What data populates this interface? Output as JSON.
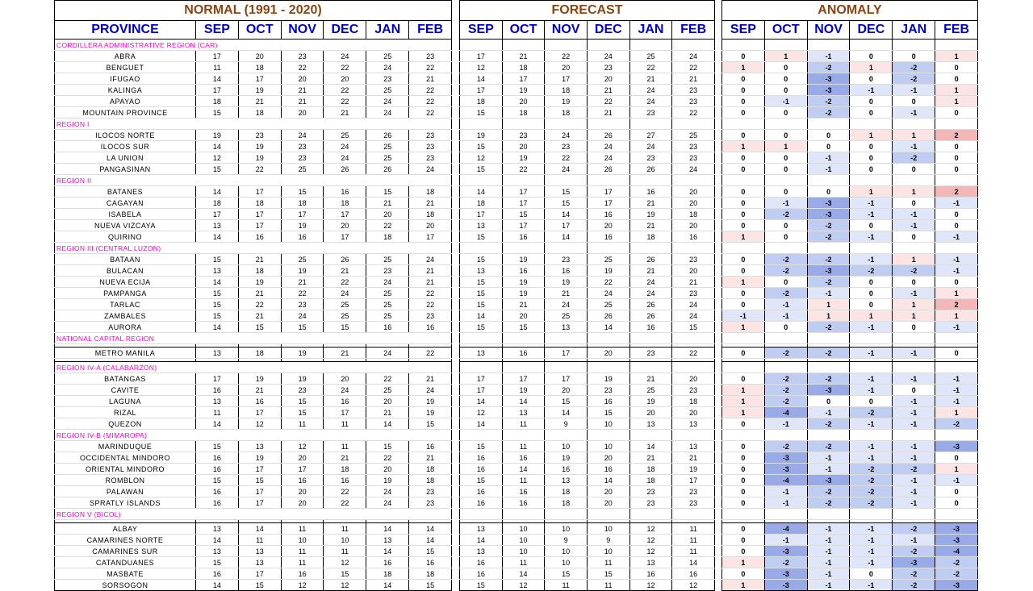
{
  "titles": {
    "normal": "NORMAL (1991 - 2020)",
    "forecast": "FORECAST",
    "anomaly": "ANOMALY"
  },
  "province_header": "PROVINCE",
  "months": [
    "SEP",
    "OCT",
    "NOV",
    "DEC",
    "JAN",
    "FEB"
  ],
  "colors": {
    "title": "#8b4513",
    "header": "#0000cc",
    "region": "#ff00cc",
    "pos_light": "#fce4e4",
    "pos_dark": "#f4b6b6",
    "neg_light": "#dfe6fa",
    "neg_mid": "#c0cdf3",
    "neg_dark": "#98abe8"
  },
  "rows": [
    {
      "type": "region",
      "name": "CORDILLERA ADMINISTRATIVE REGION (CAR)"
    },
    {
      "type": "province",
      "name": "ABRA",
      "normal": [
        17,
        20,
        23,
        24,
        25,
        23
      ],
      "forecast": [
        17,
        21,
        22,
        24,
        25,
        24
      ],
      "anomaly": [
        0,
        1,
        -1,
        0,
        0,
        1
      ]
    },
    {
      "type": "province",
      "name": "BENGUET",
      "normal": [
        11,
        18,
        22,
        22,
        24,
        22
      ],
      "forecast": [
        12,
        18,
        20,
        23,
        22,
        22
      ],
      "anomaly": [
        1,
        0,
        -2,
        1,
        -2,
        0
      ]
    },
    {
      "type": "province",
      "name": "IFUGAO",
      "normal": [
        14,
        17,
        20,
        20,
        23,
        21
      ],
      "forecast": [
        14,
        17,
        17,
        20,
        21,
        21
      ],
      "anomaly": [
        0,
        0,
        -3,
        0,
        -2,
        0
      ]
    },
    {
      "type": "province",
      "name": "KALINGA",
      "normal": [
        17,
        19,
        21,
        22,
        25,
        22
      ],
      "forecast": [
        17,
        19,
        18,
        21,
        24,
        23
      ],
      "anomaly": [
        0,
        0,
        -3,
        -1,
        -1,
        1
      ]
    },
    {
      "type": "province",
      "name": "APAYAO",
      "normal": [
        18,
        21,
        21,
        22,
        24,
        22
      ],
      "forecast": [
        18,
        20,
        19,
        22,
        24,
        23
      ],
      "anomaly": [
        0,
        -1,
        -2,
        0,
        0,
        1
      ]
    },
    {
      "type": "province",
      "name": "MOUNTAIN PROVINCE",
      "normal": [
        15,
        18,
        20,
        21,
        24,
        22
      ],
      "forecast": [
        15,
        18,
        18,
        21,
        23,
        22
      ],
      "anomaly": [
        0,
        0,
        -2,
        0,
        -1,
        0
      ]
    },
    {
      "type": "region",
      "name": "REGION I"
    },
    {
      "type": "province",
      "name": "ILOCOS NORTE",
      "normal": [
        19,
        23,
        24,
        25,
        26,
        23
      ],
      "forecast": [
        19,
        23,
        24,
        26,
        27,
        25
      ],
      "anomaly": [
        0,
        0,
        0,
        1,
        1,
        2
      ]
    },
    {
      "type": "province",
      "name": "ILOCOS SUR",
      "normal": [
        14,
        19,
        23,
        24,
        25,
        23
      ],
      "forecast": [
        15,
        20,
        23,
        24,
        24,
        23
      ],
      "anomaly": [
        1,
        1,
        0,
        0,
        -1,
        0
      ]
    },
    {
      "type": "province",
      "name": "LA UNION",
      "normal": [
        12,
        19,
        23,
        24,
        25,
        23
      ],
      "forecast": [
        12,
        19,
        22,
        24,
        23,
        23
      ],
      "anomaly": [
        0,
        0,
        -1,
        0,
        -2,
        0
      ]
    },
    {
      "type": "province",
      "name": "PANGASINAN",
      "normal": [
        15,
        22,
        25,
        26,
        26,
        24
      ],
      "forecast": [
        15,
        22,
        24,
        26,
        26,
        24
      ],
      "anomaly": [
        0,
        0,
        -1,
        0,
        0,
        0
      ]
    },
    {
      "type": "region",
      "name": "REGION II"
    },
    {
      "type": "province",
      "name": "BATANES",
      "normal": [
        14,
        17,
        15,
        16,
        15,
        18
      ],
      "forecast": [
        14,
        17,
        15,
        17,
        16,
        20
      ],
      "anomaly": [
        0,
        0,
        0,
        1,
        1,
        2
      ]
    },
    {
      "type": "province",
      "name": "CAGAYAN",
      "normal": [
        18,
        18,
        18,
        18,
        21,
        21
      ],
      "forecast": [
        18,
        17,
        15,
        17,
        21,
        20
      ],
      "anomaly": [
        0,
        -1,
        -3,
        -1,
        0,
        -1
      ]
    },
    {
      "type": "province",
      "name": "ISABELA",
      "normal": [
        17,
        17,
        17,
        17,
        20,
        18
      ],
      "forecast": [
        17,
        15,
        14,
        16,
        19,
        18
      ],
      "anomaly": [
        0,
        -2,
        -3,
        -1,
        -1,
        0
      ]
    },
    {
      "type": "province",
      "name": "NUEVA VIZCAYA",
      "normal": [
        13,
        17,
        19,
        20,
        22,
        20
      ],
      "forecast": [
        13,
        17,
        17,
        20,
        21,
        20
      ],
      "anomaly": [
        0,
        0,
        -2,
        0,
        -1,
        0
      ]
    },
    {
      "type": "province",
      "name": "QUIRINO",
      "normal": [
        14,
        16,
        16,
        17,
        18,
        17
      ],
      "forecast": [
        15,
        16,
        14,
        16,
        18,
        16
      ],
      "anomaly": [
        1,
        0,
        -2,
        -1,
        0,
        -1
      ]
    },
    {
      "type": "region",
      "name": "REGION III (CENTRAL LUZON)"
    },
    {
      "type": "province",
      "name": "BATAAN",
      "normal": [
        15,
        21,
        25,
        26,
        25,
        24
      ],
      "forecast": [
        15,
        19,
        23,
        25,
        26,
        23
      ],
      "anomaly": [
        0,
        -2,
        -2,
        -1,
        1,
        -1
      ]
    },
    {
      "type": "province",
      "name": "BULACAN",
      "normal": [
        13,
        18,
        19,
        21,
        23,
        21
      ],
      "forecast": [
        13,
        16,
        16,
        19,
        21,
        20
      ],
      "anomaly": [
        0,
        -2,
        -3,
        -2,
        -2,
        -1
      ]
    },
    {
      "type": "province",
      "name": "NUEVA ECIJA",
      "normal": [
        14,
        19,
        21,
        22,
        24,
        21
      ],
      "forecast": [
        15,
        19,
        19,
        22,
        24,
        21
      ],
      "anomaly": [
        1,
        0,
        -2,
        0,
        0,
        0
      ]
    },
    {
      "type": "province",
      "name": "PAMPANGA",
      "normal": [
        15,
        21,
        22,
        24,
        25,
        22
      ],
      "forecast": [
        15,
        19,
        21,
        24,
        24,
        23
      ],
      "anomaly": [
        0,
        -2,
        -1,
        0,
        -1,
        1
      ]
    },
    {
      "type": "province",
      "name": "TARLAC",
      "normal": [
        15,
        22,
        23,
        25,
        25,
        22
      ],
      "forecast": [
        15,
        21,
        24,
        25,
        26,
        24
      ],
      "anomaly": [
        0,
        -1,
        1,
        0,
        1,
        2
      ]
    },
    {
      "type": "province",
      "name": "ZAMBALES",
      "normal": [
        15,
        21,
        24,
        25,
        25,
        23
      ],
      "forecast": [
        14,
        20,
        25,
        26,
        26,
        24
      ],
      "anomaly": [
        -1,
        -1,
        1,
        1,
        1,
        1
      ]
    },
    {
      "type": "province",
      "name": "AURORA",
      "normal": [
        14,
        15,
        15,
        15,
        16,
        16
      ],
      "forecast": [
        15,
        15,
        13,
        14,
        16,
        15
      ],
      "anomaly": [
        1,
        0,
        -2,
        -1,
        0,
        -1
      ]
    },
    {
      "type": "region",
      "name": "NATIONAL CAPITAL REGION"
    },
    {
      "type": "gap"
    },
    {
      "type": "province",
      "name": "METRO MANILA",
      "normal": [
        13,
        18,
        19,
        21,
        24,
        22
      ],
      "forecast": [
        13,
        16,
        17,
        20,
        23,
        22
      ],
      "anomaly": [
        0,
        -2,
        -2,
        -1,
        -1,
        0
      ]
    },
    {
      "type": "gap"
    },
    {
      "type": "region",
      "name": "REGION IV-A (CALABARZON)"
    },
    {
      "type": "province",
      "name": "BATANGAS",
      "normal": [
        17,
        19,
        19,
        20,
        22,
        21
      ],
      "forecast": [
        17,
        17,
        17,
        19,
        21,
        20
      ],
      "anomaly": [
        0,
        -2,
        -2,
        -1,
        -1,
        -1
      ]
    },
    {
      "type": "province",
      "name": "CAVITE",
      "normal": [
        16,
        21,
        23,
        24,
        25,
        24
      ],
      "forecast": [
        17,
        19,
        20,
        23,
        25,
        23
      ],
      "anomaly": [
        1,
        -2,
        -3,
        -1,
        0,
        -1
      ]
    },
    {
      "type": "province",
      "name": "LAGUNA",
      "normal": [
        13,
        16,
        15,
        16,
        20,
        19
      ],
      "forecast": [
        14,
        14,
        15,
        16,
        19,
        18
      ],
      "anomaly": [
        1,
        -2,
        0,
        0,
        -1,
        -1
      ]
    },
    {
      "type": "province",
      "name": "RIZAL",
      "normal": [
        11,
        17,
        15,
        17,
        21,
        19
      ],
      "forecast": [
        12,
        13,
        14,
        15,
        20,
        20
      ],
      "anomaly": [
        1,
        -4,
        -1,
        -2,
        -1,
        1
      ]
    },
    {
      "type": "province",
      "name": "QUEZON",
      "normal": [
        14,
        12,
        11,
        11,
        14,
        15
      ],
      "forecast": [
        14,
        11,
        9,
        10,
        13,
        13
      ],
      "anomaly": [
        0,
        -1,
        -2,
        -1,
        -1,
        -2
      ]
    },
    {
      "type": "region",
      "name": "REGION IV-B (MIMAROPA)"
    },
    {
      "type": "province",
      "name": "MARINDUQUE",
      "normal": [
        15,
        13,
        12,
        11,
        15,
        16
      ],
      "forecast": [
        15,
        11,
        10,
        10,
        14,
        13
      ],
      "anomaly": [
        0,
        -2,
        -2,
        -1,
        -1,
        -3
      ]
    },
    {
      "type": "province",
      "name": "OCCIDENTAL MINDORO",
      "normal": [
        16,
        19,
        20,
        21,
        22,
        21
      ],
      "forecast": [
        16,
        16,
        19,
        20,
        21,
        21
      ],
      "anomaly": [
        0,
        -3,
        -1,
        -1,
        -1,
        0
      ]
    },
    {
      "type": "province",
      "name": "ORIENTAL MINDORO",
      "normal": [
        16,
        17,
        17,
        18,
        20,
        18
      ],
      "forecast": [
        16,
        14,
        16,
        16,
        18,
        19
      ],
      "anomaly": [
        0,
        -3,
        -1,
        -2,
        -2,
        1
      ]
    },
    {
      "type": "province",
      "name": "ROMBLON",
      "normal": [
        15,
        15,
        16,
        16,
        19,
        18
      ],
      "forecast": [
        15,
        11,
        13,
        14,
        18,
        17
      ],
      "anomaly": [
        0,
        -4,
        -3,
        -2,
        -1,
        -1
      ]
    },
    {
      "type": "province",
      "name": "PALAWAN",
      "normal": [
        16,
        17,
        20,
        22,
        24,
        23
      ],
      "forecast": [
        16,
        16,
        18,
        20,
        23,
        23
      ],
      "anomaly": [
        0,
        -1,
        -2,
        -2,
        -1,
        0
      ]
    },
    {
      "type": "province",
      "name": "SPRATLY ISLANDS",
      "normal": [
        16,
        17,
        20,
        22,
        24,
        23
      ],
      "forecast": [
        16,
        16,
        18,
        20,
        23,
        23
      ],
      "anomaly": [
        0,
        -1,
        -2,
        -2,
        -1,
        0
      ]
    },
    {
      "type": "region",
      "name": "REGION V (BICOL)"
    },
    {
      "type": "gap"
    },
    {
      "type": "province",
      "name": "ALBAY",
      "normal": [
        13,
        14,
        11,
        11,
        14,
        14
      ],
      "forecast": [
        13,
        10,
        10,
        10,
        12,
        11
      ],
      "anomaly": [
        0,
        -4,
        -1,
        -1,
        -2,
        -3
      ]
    },
    {
      "type": "province",
      "name": "CAMARINES NORTE",
      "normal": [
        14,
        11,
        10,
        10,
        13,
        14
      ],
      "forecast": [
        14,
        10,
        9,
        9,
        12,
        11
      ],
      "anomaly": [
        0,
        -1,
        -1,
        -1,
        -1,
        -3
      ]
    },
    {
      "type": "province",
      "name": "CAMARINES SUR",
      "normal": [
        13,
        13,
        11,
        11,
        14,
        15
      ],
      "forecast": [
        13,
        10,
        10,
        10,
        12,
        11
      ],
      "anomaly": [
        0,
        -3,
        -1,
        -1,
        -2,
        -4
      ]
    },
    {
      "type": "province",
      "name": "CATANDUANES",
      "normal": [
        15,
        13,
        11,
        12,
        16,
        16
      ],
      "forecast": [
        16,
        11,
        10,
        11,
        13,
        14
      ],
      "anomaly": [
        1,
        -2,
        -1,
        -1,
        -3,
        -2
      ]
    },
    {
      "type": "province",
      "name": "MASBATE",
      "normal": [
        16,
        17,
        16,
        15,
        18,
        18
      ],
      "forecast": [
        16,
        14,
        15,
        15,
        16,
        16
      ],
      "anomaly": [
        0,
        -3,
        -1,
        0,
        -2,
        -2
      ]
    },
    {
      "type": "province",
      "name": "SORSOGON",
      "normal": [
        14,
        15,
        12,
        12,
        14,
        15
      ],
      "forecast": [
        15,
        12,
        11,
        11,
        12,
        12
      ],
      "anomaly": [
        1,
        -3,
        -1,
        -1,
        -2,
        -3
      ]
    }
  ]
}
